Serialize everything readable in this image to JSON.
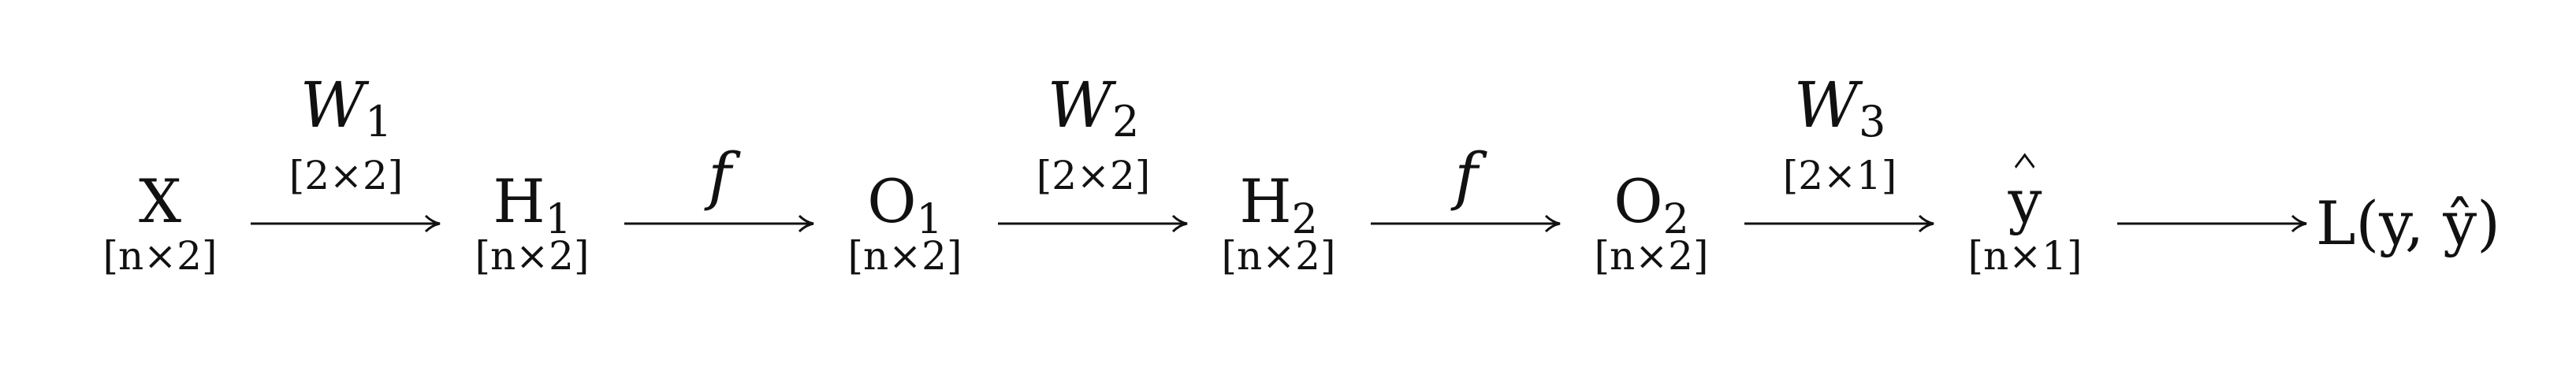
{
  "nodes": [
    {
      "id": "X",
      "name": "X",
      "sub": "",
      "dim": "[n×2]"
    },
    {
      "id": "H1",
      "name": "H",
      "sub": "1",
      "dim": "[n×2]"
    },
    {
      "id": "O1",
      "name": "O",
      "sub": "1",
      "dim": "[n×2]"
    },
    {
      "id": "H2",
      "name": "H",
      "sub": "2",
      "dim": "[n×2]"
    },
    {
      "id": "O2",
      "name": "O",
      "sub": "2",
      "dim": "[n×2]"
    },
    {
      "id": "yhat",
      "name": "y",
      "sub": "",
      "dim": "[n×1]"
    },
    {
      "id": "loss",
      "name": "L(y, ŷ)",
      "sub": "",
      "dim": ""
    }
  ],
  "edges": [
    {
      "from": "X",
      "to": "H1",
      "label": "W",
      "sub": "1",
      "dim": "[2×2]"
    },
    {
      "from": "H1",
      "to": "O1",
      "label": "f",
      "sub": "",
      "dim": ""
    },
    {
      "from": "O1",
      "to": "H2",
      "label": "W",
      "sub": "2",
      "dim": "[2×2]"
    },
    {
      "from": "H2",
      "to": "O2",
      "label": "f",
      "sub": "",
      "dim": ""
    },
    {
      "from": "O2",
      "to": "yhat",
      "label": "W",
      "sub": "3",
      "dim": "[2×1]"
    },
    {
      "from": "yhat",
      "to": "loss",
      "label": "",
      "sub": "",
      "dim": ""
    }
  ]
}
